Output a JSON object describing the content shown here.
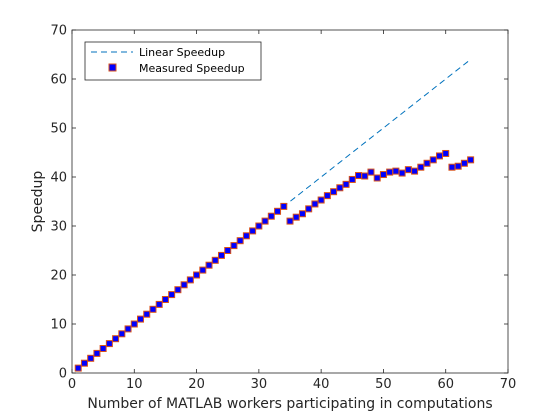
{
  "chart_data": {
    "type": "scatter",
    "title": "",
    "xlabel": "Number of MATLAB workers participating in computations",
    "ylabel": "Speedup",
    "xlim": [
      0,
      70
    ],
    "ylim": [
      0,
      70
    ],
    "xticks": [
      "0",
      "10",
      "20",
      "30",
      "40",
      "50",
      "60",
      "70"
    ],
    "yticks": [
      "0",
      "10",
      "20",
      "30",
      "40",
      "50",
      "60",
      "70"
    ],
    "grid": false,
    "legend_position": "top-left",
    "series": [
      {
        "name": "Linear Speedup",
        "style": "dashed-line",
        "color": "#0072BD",
        "x": [
          1,
          64
        ],
        "y": [
          1,
          64
        ]
      },
      {
        "name": "Measured Speedup",
        "style": "square-markers",
        "face_color": "#0000FF",
        "edge_color": "#D95319",
        "x": [
          1,
          2,
          3,
          4,
          5,
          6,
          7,
          8,
          9,
          10,
          11,
          12,
          13,
          14,
          15,
          16,
          17,
          18,
          19,
          20,
          21,
          22,
          23,
          24,
          25,
          26,
          27,
          28,
          29,
          30,
          31,
          32,
          33,
          34,
          35,
          36,
          37,
          38,
          39,
          40,
          41,
          42,
          43,
          44,
          45,
          46,
          47,
          48,
          49,
          50,
          51,
          52,
          53,
          54,
          55,
          56,
          57,
          58,
          59,
          60,
          61,
          62,
          63,
          64
        ],
        "y": [
          1,
          2,
          3,
          4,
          5,
          6,
          7,
          8,
          9,
          10,
          11,
          12,
          13,
          14,
          15,
          16,
          17,
          18,
          19,
          20,
          21,
          22,
          23,
          24,
          25,
          26,
          27,
          28,
          29,
          30,
          31,
          32,
          33,
          34,
          31,
          31.8,
          32.5,
          33.5,
          34.5,
          35.3,
          36.2,
          37,
          37.8,
          38.5,
          39.5,
          40.3,
          40.2,
          41,
          39.8,
          40.5,
          41,
          41.2,
          40.8,
          41.5,
          41.2,
          42,
          42.8,
          43.5,
          44.3,
          44.8,
          42,
          42.2,
          42.8,
          43.5
        ]
      }
    ]
  }
}
